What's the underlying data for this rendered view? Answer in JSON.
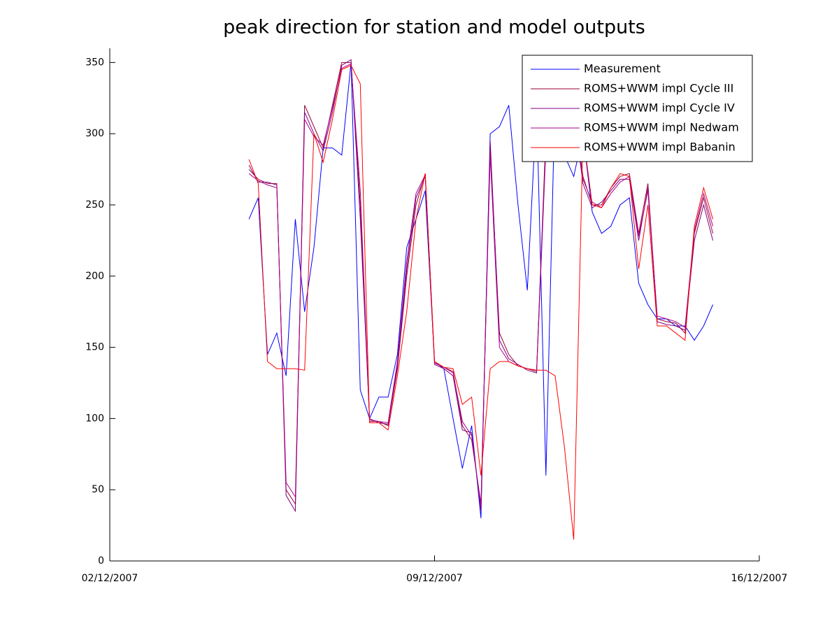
{
  "chart_data": {
    "type": "line",
    "title": "peak direction for station and model outputs",
    "x": [
      3,
      3.2,
      3.4,
      3.6,
      3.8,
      4,
      4.2,
      4.4,
      4.6,
      4.8,
      5,
      5.2,
      5.4,
      5.6,
      5.8,
      6,
      6.2,
      6.4,
      6.6,
      6.8,
      7,
      7.2,
      7.4,
      7.6,
      7.8,
      8,
      8.2,
      8.4,
      8.6,
      8.8,
      9,
      9.2,
      9.4,
      9.6,
      9.8,
      10,
      10.2,
      10.4,
      10.6,
      10.8,
      11,
      11.2,
      11.4,
      11.6,
      11.8,
      12,
      12.2,
      12.4,
      12.6,
      12.8,
      13
    ],
    "series": [
      {
        "name": "Measurement",
        "color": "#0000ff",
        "values": [
          240,
          255,
          145,
          160,
          130,
          240,
          175,
          220,
          290,
          290,
          285,
          350,
          120,
          100,
          115,
          115,
          145,
          220,
          240,
          260,
          140,
          135,
          100,
          65,
          95,
          30,
          300,
          305,
          320,
          250,
          190,
          320,
          60,
          330,
          285,
          270,
          300,
          245,
          230,
          235,
          250,
          255,
          195,
          180,
          170,
          170,
          165,
          165,
          155,
          165,
          180
        ]
      },
      {
        "name": "ROMS+WWM impl Cycle III",
        "color": "#990033",
        "values": [
          275,
          268,
          265,
          265,
          50,
          40,
          320,
          305,
          290,
          320,
          350,
          350,
          250,
          98,
          98,
          95,
          135,
          200,
          250,
          272,
          140,
          136,
          133,
          95,
          85,
          40,
          290,
          160,
          145,
          137,
          135,
          133,
          300,
          350,
          340,
          320,
          270,
          250,
          250,
          262,
          270,
          272,
          230,
          265,
          170,
          168,
          167,
          160,
          230,
          255,
          230
        ]
      },
      {
        "name": "ROMS+WWM impl Cycle IV",
        "color": "#800080",
        "values": [
          278,
          266,
          266,
          264,
          46,
          35,
          315,
          300,
          288,
          315,
          348,
          352,
          240,
          100,
          97,
          96,
          138,
          205,
          255,
          270,
          138,
          135,
          130,
          92,
          90,
          35,
          295,
          155,
          142,
          138,
          134,
          132,
          290,
          345,
          335,
          315,
          265,
          248,
          252,
          260,
          268,
          268,
          225,
          262,
          168,
          166,
          165,
          162,
          225,
          250,
          225
        ]
      },
      {
        "name": "ROMS+WWM impl Nedwam",
        "color": "#aa0088",
        "values": [
          272,
          267,
          264,
          262,
          55,
          45,
          310,
          298,
          292,
          318,
          346,
          349,
          260,
          99,
          98,
          97,
          140,
          210,
          258,
          271,
          139,
          136,
          132,
          98,
          88,
          38,
          285,
          150,
          140,
          137,
          135,
          134,
          295,
          348,
          338,
          318,
          268,
          252,
          248,
          258,
          266,
          270,
          228,
          260,
          172,
          170,
          168,
          164,
          232,
          258,
          235
        ]
      },
      {
        "name": "ROMS+WWM impl Babanin",
        "color": "#ff0000",
        "values": [
          282,
          265,
          140,
          135,
          135,
          135,
          134,
          300,
          280,
          310,
          345,
          348,
          335,
          97,
          97,
          92,
          130,
          175,
          240,
          272,
          140,
          136,
          135,
          110,
          115,
          60,
          135,
          140,
          140,
          137,
          135,
          134,
          134,
          130,
          80,
          15,
          300,
          250,
          248,
          262,
          272,
          270,
          205,
          250,
          165,
          165,
          160,
          155,
          235,
          262,
          240
        ]
      }
    ],
    "xlim": [
      0,
      14
    ],
    "xticks": [
      {
        "value": 0,
        "label": "02/12/2007"
      },
      {
        "value": 7,
        "label": "09/12/2007"
      },
      {
        "value": 14,
        "label": "16/12/2007"
      }
    ],
    "ylim": [
      0,
      360
    ],
    "yticks": [
      0,
      50,
      100,
      150,
      200,
      250,
      300,
      350
    ],
    "legend": "top-right",
    "grid": false
  }
}
